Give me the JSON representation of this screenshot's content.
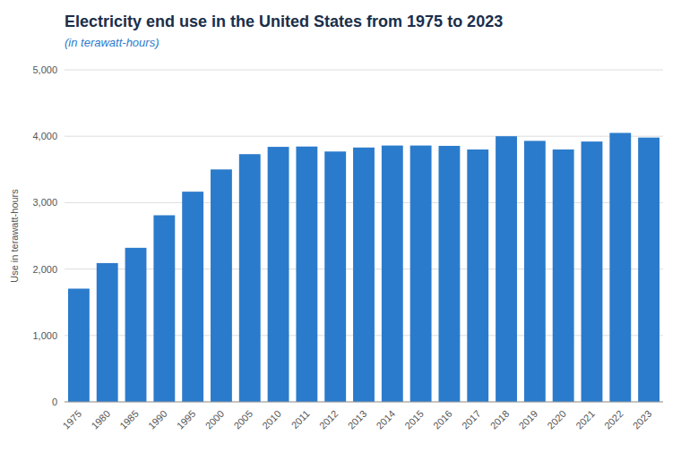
{
  "chart_data": {
    "type": "bar",
    "title": "Electricity end use in the United States from 1975 to 2023",
    "subtitle": "(in terawatt-hours)",
    "y_label": "Use in terawatt-hours",
    "categories": [
      "1975",
      "1980",
      "1985",
      "1990",
      "1995",
      "2000",
      "2005",
      "2010",
      "2011",
      "2012",
      "2013",
      "2014",
      "2015",
      "2016",
      "2017",
      "2018",
      "2019",
      "2020",
      "2021",
      "2022",
      "2023"
    ],
    "values": [
      1705,
      2090,
      2320,
      2810,
      3165,
      3500,
      3730,
      3840,
      3845,
      3770,
      3830,
      3860,
      3860,
      3855,
      3800,
      4000,
      3930,
      3800,
      3920,
      4050,
      3980
    ],
    "color": "#2b7bcc",
    "ylim": [
      0,
      5000
    ],
    "yticks": [
      0,
      {
        "value": 1000,
        "label": "1,000"
      },
      {
        "value": 2000,
        "label": "2,000"
      },
      {
        "value": 3000,
        "label": "3,000"
      },
      {
        "value": 4000,
        "label": "4,000"
      },
      {
        "value": 5000,
        "label": "5,000"
      }
    ],
    "grid": true
  }
}
